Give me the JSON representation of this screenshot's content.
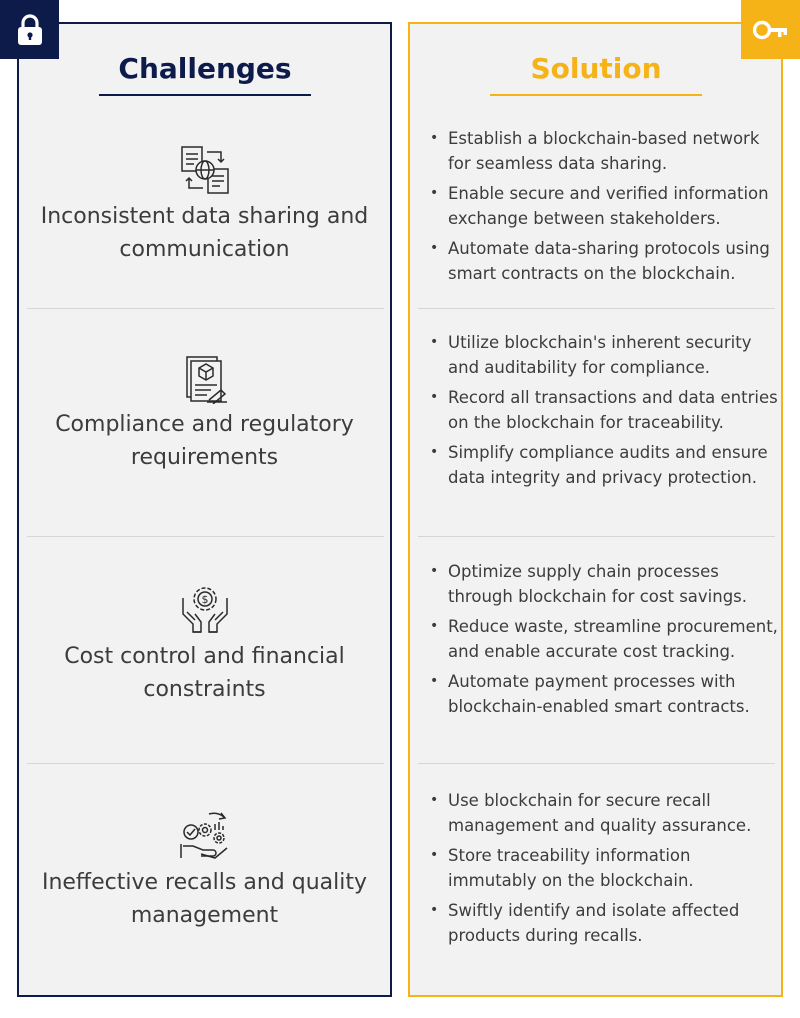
{
  "colors": {
    "navy": "#0d1b4b",
    "gold": "#f5b317",
    "panel": "#f2f2f2",
    "text": "#3c3c3c"
  },
  "left": {
    "heading": "Challenges",
    "corner_icon": "lock-icon"
  },
  "right": {
    "heading": "Solution",
    "corner_icon": "key-icon"
  },
  "rows": [
    {
      "challenge": "Inconsistent data sharing and communication",
      "icon": "data-sharing-icon",
      "solutions": [
        "Establish a blockchain-based network for seamless data sharing.",
        "Enable secure and verified information exchange between stakeholders.",
        "Automate data-sharing protocols using smart contracts on the blockchain."
      ]
    },
    {
      "challenge": "Compliance and regulatory requirements",
      "icon": "compliance-document-icon",
      "solutions": [
        "Utilize blockchain's inherent security and auditability for compliance.",
        "Record all transactions and data entries on the blockchain for traceability.",
        "Simplify compliance audits and ensure data integrity and privacy protection."
      ]
    },
    {
      "challenge": "Cost control and financial constraints",
      "icon": "hands-money-gear-icon",
      "solutions": [
        "Optimize supply chain processes through blockchain for cost savings.",
        "Reduce waste, streamline procurement, and enable accurate cost tracking.",
        "Automate payment processes with blockchain-enabled smart contracts."
      ]
    },
    {
      "challenge": "Ineffective recalls and quality management",
      "icon": "quality-management-hand-icon",
      "solutions": [
        "Use blockchain for secure recall management and quality assurance.",
        "Store traceability information immutably on the blockchain.",
        "Swiftly identify and isolate affected products during recalls."
      ]
    }
  ]
}
